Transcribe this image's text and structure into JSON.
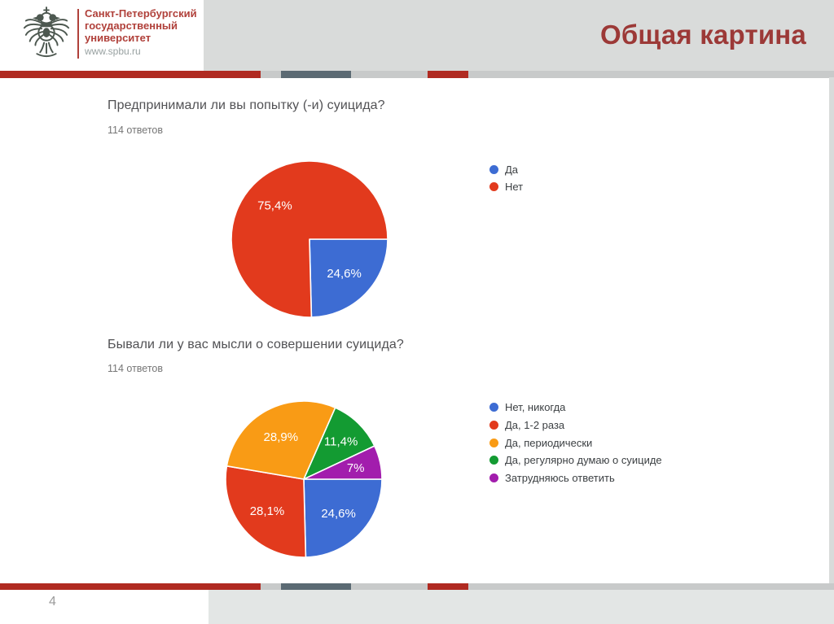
{
  "header": {
    "university": {
      "line1": "Санкт-Петербургский",
      "line2": "государственный",
      "line3": "университет",
      "website": "www.spbu.ru"
    },
    "slide_title": "Общая картина"
  },
  "colors": {
    "slide_title_red": "#9c3937",
    "logo_red": "#b0403a",
    "stripe_red": "#b02a21",
    "stripe_slate": "#5b6a73",
    "stripe_gray": "#c8caca",
    "header_gray": "#d9dbda",
    "footer_gray": "#e3e6e5",
    "eagle_gray": "#4d5850"
  },
  "footer": {
    "page_number": "4"
  },
  "chart_data": [
    {
      "type": "pie",
      "title": "Предпринимали ли вы попытку (-и) суицида?",
      "subtitle": "114 ответов",
      "start_angle_deg": 0,
      "direction": "clockwise",
      "legend_position": "right",
      "slices": [
        {
          "label": "Да",
          "value": 24.6,
          "display": "24,6%",
          "color": "#3d6cd3"
        },
        {
          "label": "Нет",
          "value": 75.4,
          "display": "75,4%",
          "color": "#e23a1d"
        }
      ]
    },
    {
      "type": "pie",
      "title": "Бывали ли у вас мысли о совершении суицида?",
      "subtitle": "114 ответов",
      "start_angle_deg": 0,
      "direction": "clockwise",
      "legend_position": "right",
      "slices": [
        {
          "label": "Нет, никогда",
          "value": 24.6,
          "display": "24,6%",
          "color": "#3d6cd3"
        },
        {
          "label": "Да, 1-2 раза",
          "value": 28.1,
          "display": "28,1%",
          "color": "#e23a1d"
        },
        {
          "label": "Да, периодически",
          "value": 28.9,
          "display": "28,9%",
          "color": "#f99b15"
        },
        {
          "label": "Да, регулярно думаю о суициде",
          "value": 11.4,
          "display": "11,4%",
          "color": "#139b32"
        },
        {
          "label": "Затрудняюсь ответить",
          "value": 7.0,
          "display": "7%",
          "color": "#a21dad"
        }
      ]
    }
  ]
}
